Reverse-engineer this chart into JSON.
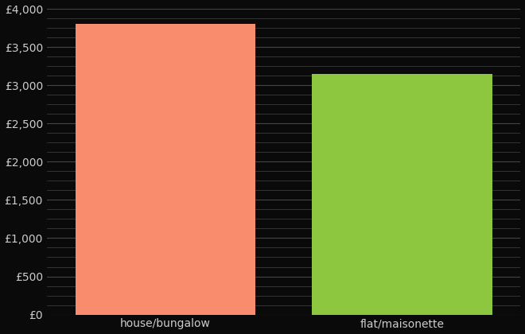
{
  "categories": [
    "house/bungalow",
    "flat/maisonette"
  ],
  "values": [
    3800,
    3150
  ],
  "bar_colors": [
    "#FA8C6E",
    "#8DC63F"
  ],
  "background_color": "#0a0a0a",
  "text_color": "#cccccc",
  "ylim": [
    0,
    4000
  ],
  "ytick_major_step": 500,
  "ytick_minor_step": 125,
  "bar_width": 0.38,
  "x_positions": [
    0.25,
    0.75
  ],
  "xlim": [
    0,
    1
  ],
  "xlabel": "",
  "ylabel": "",
  "grid_color": "#444444",
  "major_grid_linewidth": 0.8,
  "minor_grid_linewidth": 0.5,
  "tick_fontsize": 10,
  "xlabel_fontsize": 10
}
